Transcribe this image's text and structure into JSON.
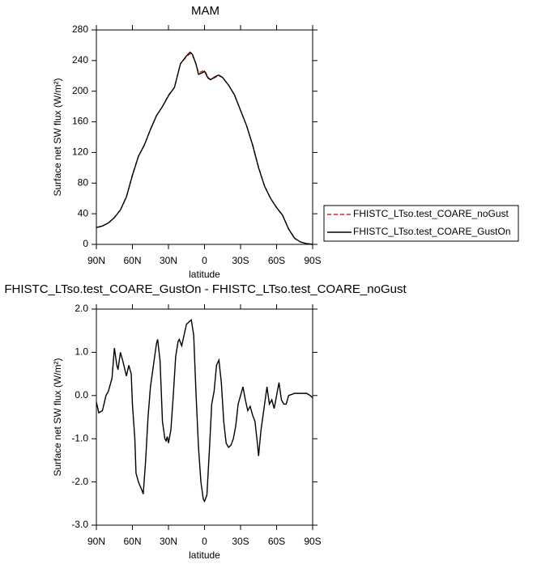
{
  "chart_data": [
    {
      "type": "line",
      "title": "MAM",
      "xlabel": "latitude",
      "ylabel": "Surface net SW flux (W/m²)",
      "x": [
        90,
        85,
        80,
        75,
        70,
        65,
        60,
        55,
        50,
        45,
        40,
        35,
        30,
        25,
        20,
        15,
        12,
        10,
        7,
        5,
        2,
        0,
        -3,
        -5,
        -10,
        -12,
        -15,
        -20,
        -25,
        -30,
        -35,
        -40,
        -45,
        -50,
        -55,
        -60,
        -65,
        -70,
        -75,
        -80,
        -85,
        -90
      ],
      "series": [
        {
          "name": "FHISTC_LTso.test_COARE_noGust",
          "color": "#e0201a",
          "dash": true,
          "values": [
            22,
            24,
            28,
            35,
            45,
            62,
            91,
            115,
            130,
            150,
            168,
            180,
            195,
            205,
            236,
            245,
            249,
            247,
            235,
            224,
            226,
            227,
            218,
            215,
            219,
            220,
            218,
            208,
            195,
            175,
            155,
            130,
            101,
            76,
            60,
            48,
            38,
            20,
            8,
            3,
            1,
            0
          ]
        },
        {
          "name": "FHISTC_LTso.test_COARE_GustOn",
          "color": "#000000",
          "dash": false,
          "values": [
            22,
            24,
            28,
            35,
            45,
            62,
            90,
            115,
            130,
            150,
            168,
            180,
            194,
            205,
            236,
            246,
            251,
            248,
            235,
            222,
            224,
            226,
            217,
            215,
            220,
            221,
            218,
            208,
            195,
            175,
            155,
            130,
            100,
            76,
            60,
            48,
            38,
            20,
            8,
            3,
            1,
            0
          ]
        }
      ],
      "xlim": [
        90,
        -90
      ],
      "xticks": [
        {
          "value": 90,
          "label": "90N"
        },
        {
          "value": 60,
          "label": "60N"
        },
        {
          "value": 30,
          "label": "30N"
        },
        0,
        {
          "value": -30,
          "label": "30S"
        },
        {
          "value": -60,
          "label": "60S"
        },
        {
          "value": -90,
          "label": "90S"
        }
      ],
      "ylim": [
        0,
        280
      ],
      "yticks": [
        0,
        40,
        80,
        120,
        160,
        200,
        240,
        280
      ],
      "legend": "outside-right"
    },
    {
      "type": "line",
      "title": "FHISTC_LTso.test_COARE_GustOn - FHISTC_LTso.test_COARE_noGust",
      "xlabel": "latitude",
      "ylabel": "Surface net SW flux (W/m²)",
      "x": [
        90,
        88,
        85,
        82,
        80,
        77,
        75,
        73,
        72,
        70,
        68,
        65,
        63,
        61,
        60,
        58,
        57,
        55,
        52,
        51,
        49,
        47,
        45,
        42,
        40,
        39,
        37,
        35,
        33,
        32,
        31,
        30,
        28,
        26,
        24,
        22,
        21,
        19,
        17,
        15,
        13,
        11,
        9,
        7,
        5,
        3,
        1,
        0,
        -2,
        -4,
        -6,
        -8,
        -10,
        -12,
        -14,
        -16,
        -18,
        -20,
        -22,
        -24,
        -26,
        -28,
        -30,
        -32,
        -34,
        -36,
        -38,
        -40,
        -42,
        -44,
        -45,
        -47,
        -50,
        -52,
        -54,
        -56,
        -58,
        -60,
        -62,
        -64,
        -66,
        -68,
        -70,
        -75,
        -80,
        -85,
        -88,
        -90
      ],
      "color": "#000000",
      "values": [
        -0.15,
        -0.4,
        -0.35,
        0.0,
        0.1,
        0.4,
        1.1,
        0.7,
        0.6,
        1.0,
        0.8,
        0.45,
        0.7,
        0.5,
        -0.2,
        -1.0,
        -1.8,
        -2.0,
        -2.2,
        -2.28,
        -1.5,
        -0.5,
        0.2,
        0.8,
        1.2,
        1.3,
        0.8,
        -0.6,
        -1.0,
        -1.05,
        -0.95,
        -1.1,
        -0.8,
        0.0,
        0.9,
        1.25,
        1.3,
        1.15,
        1.4,
        1.65,
        1.7,
        1.75,
        1.4,
        0.0,
        -1.2,
        -2.0,
        -2.4,
        -2.45,
        -2.3,
        -1.3,
        -0.2,
        0.1,
        0.7,
        0.82,
        0.3,
        -0.6,
        -1.1,
        -1.2,
        -1.15,
        -1.0,
        -0.7,
        -0.2,
        0.0,
        0.2,
        -0.1,
        -0.35,
        -0.25,
        -0.45,
        -0.6,
        -1.1,
        -1.4,
        -0.8,
        -0.2,
        0.2,
        -0.2,
        -0.1,
        -0.3,
        0.0,
        0.3,
        -0.1,
        -0.2,
        -0.2,
        0.0,
        0.05,
        0.05,
        0.05,
        0.0,
        -0.05
      ],
      "xlim": [
        90,
        -90
      ],
      "xticks": [
        {
          "value": 90,
          "label": "90N"
        },
        {
          "value": 60,
          "label": "60N"
        },
        {
          "value": 30,
          "label": "30N"
        },
        0,
        {
          "value": -30,
          "label": "30S"
        },
        {
          "value": -60,
          "label": "60S"
        },
        {
          "value": -90,
          "label": "90S"
        }
      ],
      "ylim": [
        -3,
        2
      ],
      "yticks": [
        {
          "value": -3,
          "label": "-3.0"
        },
        {
          "value": -2,
          "label": "-2.0"
        },
        {
          "value": -1,
          "label": "-1.0"
        },
        {
          "value": 0,
          "label": "0.0"
        },
        {
          "value": 1,
          "label": "1.0"
        },
        {
          "value": 2,
          "label": "2.0"
        }
      ]
    }
  ]
}
